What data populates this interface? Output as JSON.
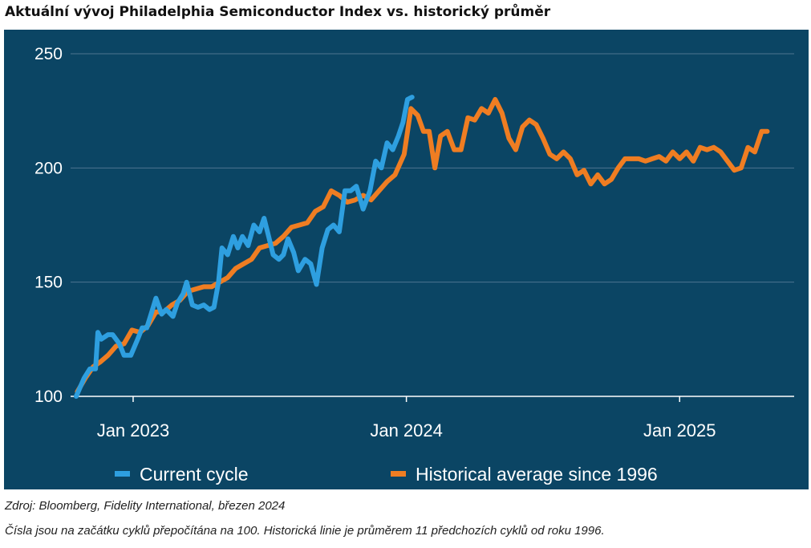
{
  "title": "Aktuální vývoj Philadelphia Semiconductor Index vs. historický průměr",
  "footer": {
    "source": "Zdroj: Bloomberg, Fidelity International, březen 2024",
    "note": "Čísla jsou na začátku cyklů přepočítána na 100. Historická linie je průměrem 11 předchozích cyklů od roku 1996."
  },
  "chart_data": {
    "type": "line",
    "ylim": [
      100,
      250
    ],
    "yticks": [
      100,
      150,
      200,
      250
    ],
    "xlim_months": [
      0,
      31
    ],
    "xticks": [
      {
        "label": "Jan 2023",
        "month": 2.5
      },
      {
        "label": "Jan 2024",
        "month": 14.5
      },
      {
        "label": "Jan 2025",
        "month": 26.5
      }
    ],
    "grid": "horizontal",
    "legend_position": "bottom",
    "colors": {
      "background": "#0b4564",
      "grid": "#4d7590",
      "text": "#ffffff"
    },
    "series": [
      {
        "name": "Current cycle",
        "color": "#2e9fe0",
        "points": [
          [
            0.0,
            100
          ],
          [
            0.35,
            108
          ],
          [
            0.6,
            112
          ],
          [
            0.85,
            112
          ],
          [
            0.95,
            128
          ],
          [
            1.1,
            125
          ],
          [
            1.4,
            127
          ],
          [
            1.6,
            127
          ],
          [
            1.9,
            123
          ],
          [
            2.1,
            118
          ],
          [
            2.4,
            118
          ],
          [
            2.7,
            125
          ],
          [
            2.9,
            130
          ],
          [
            3.1,
            130
          ],
          [
            3.35,
            138
          ],
          [
            3.5,
            143
          ],
          [
            3.75,
            136
          ],
          [
            3.95,
            138
          ],
          [
            4.25,
            135
          ],
          [
            4.45,
            141
          ],
          [
            4.7,
            145
          ],
          [
            4.85,
            150
          ],
          [
            5.1,
            140
          ],
          [
            5.35,
            139
          ],
          [
            5.6,
            140
          ],
          [
            5.85,
            138
          ],
          [
            6.05,
            139
          ],
          [
            6.25,
            150
          ],
          [
            6.4,
            165
          ],
          [
            6.65,
            162
          ],
          [
            6.9,
            170
          ],
          [
            7.1,
            165
          ],
          [
            7.3,
            170
          ],
          [
            7.55,
            166
          ],
          [
            7.8,
            175
          ],
          [
            8.05,
            172
          ],
          [
            8.25,
            178
          ],
          [
            8.45,
            170
          ],
          [
            8.65,
            162
          ],
          [
            8.9,
            160
          ],
          [
            9.1,
            162
          ],
          [
            9.3,
            169
          ],
          [
            9.55,
            163
          ],
          [
            9.75,
            155
          ],
          [
            10.05,
            160
          ],
          [
            10.3,
            158
          ],
          [
            10.55,
            149
          ],
          [
            10.8,
            165
          ],
          [
            11.05,
            173
          ],
          [
            11.3,
            175
          ],
          [
            11.55,
            172
          ],
          [
            11.8,
            190
          ],
          [
            12.05,
            190
          ],
          [
            12.3,
            192
          ],
          [
            12.6,
            182
          ],
          [
            12.9,
            190
          ],
          [
            13.15,
            203
          ],
          [
            13.4,
            200
          ],
          [
            13.65,
            211
          ],
          [
            13.9,
            208
          ],
          [
            14.15,
            214
          ],
          [
            14.35,
            220
          ],
          [
            14.55,
            230
          ],
          [
            14.75,
            231
          ]
        ]
      },
      {
        "name": "Historical average since 1996",
        "color": "#ef7d22",
        "points": [
          [
            0.05,
            102
          ],
          [
            0.4,
            108
          ],
          [
            0.75,
            113
          ],
          [
            1.05,
            115
          ],
          [
            1.4,
            118
          ],
          [
            1.75,
            122
          ],
          [
            2.1,
            123
          ],
          [
            2.45,
            129
          ],
          [
            2.8,
            128
          ],
          [
            3.15,
            131
          ],
          [
            3.5,
            137
          ],
          [
            3.85,
            137
          ],
          [
            4.2,
            140
          ],
          [
            4.55,
            142
          ],
          [
            4.9,
            146
          ],
          [
            5.25,
            147
          ],
          [
            5.6,
            148
          ],
          [
            5.95,
            148
          ],
          [
            6.3,
            150
          ],
          [
            6.65,
            152
          ],
          [
            7.0,
            156
          ],
          [
            7.35,
            158
          ],
          [
            7.7,
            160
          ],
          [
            8.05,
            165
          ],
          [
            8.4,
            166
          ],
          [
            8.75,
            167
          ],
          [
            9.1,
            170
          ],
          [
            9.45,
            174
          ],
          [
            9.8,
            175
          ],
          [
            10.15,
            176
          ],
          [
            10.5,
            181
          ],
          [
            10.85,
            183
          ],
          [
            11.2,
            190
          ],
          [
            11.55,
            188
          ],
          [
            11.9,
            185
          ],
          [
            12.25,
            186
          ],
          [
            12.6,
            188
          ],
          [
            12.95,
            186
          ],
          [
            13.3,
            190
          ],
          [
            13.65,
            194
          ],
          [
            14.0,
            197
          ],
          [
            14.4,
            206
          ],
          [
            14.7,
            226
          ],
          [
            15.0,
            223
          ],
          [
            15.25,
            216
          ],
          [
            15.5,
            216
          ],
          [
            15.75,
            200
          ],
          [
            16.0,
            214
          ],
          [
            16.3,
            216
          ],
          [
            16.6,
            208
          ],
          [
            16.9,
            208
          ],
          [
            17.2,
            222
          ],
          [
            17.5,
            221
          ],
          [
            17.8,
            226
          ],
          [
            18.1,
            224
          ],
          [
            18.4,
            230
          ],
          [
            18.7,
            224
          ],
          [
            19.0,
            213
          ],
          [
            19.3,
            208
          ],
          [
            19.6,
            218
          ],
          [
            19.9,
            221
          ],
          [
            20.2,
            219
          ],
          [
            20.5,
            213
          ],
          [
            20.8,
            206
          ],
          [
            21.1,
            204
          ],
          [
            21.4,
            207
          ],
          [
            21.7,
            204
          ],
          [
            22.0,
            197
          ],
          [
            22.3,
            199
          ],
          [
            22.6,
            193
          ],
          [
            22.9,
            197
          ],
          [
            23.2,
            193
          ],
          [
            23.5,
            195
          ],
          [
            23.8,
            200
          ],
          [
            24.1,
            204
          ],
          [
            24.4,
            204
          ],
          [
            24.7,
            204
          ],
          [
            25.0,
            203
          ],
          [
            25.3,
            204
          ],
          [
            25.6,
            205
          ],
          [
            25.9,
            203
          ],
          [
            26.2,
            207
          ],
          [
            26.5,
            204
          ],
          [
            26.8,
            207
          ],
          [
            27.1,
            203
          ],
          [
            27.4,
            209
          ],
          [
            27.7,
            208
          ],
          [
            28.0,
            209
          ],
          [
            28.3,
            207
          ],
          [
            28.6,
            203
          ],
          [
            28.9,
            199
          ],
          [
            29.2,
            200
          ],
          [
            29.5,
            209
          ],
          [
            29.8,
            207
          ],
          [
            30.1,
            216
          ],
          [
            30.35,
            216
          ]
        ]
      }
    ]
  }
}
